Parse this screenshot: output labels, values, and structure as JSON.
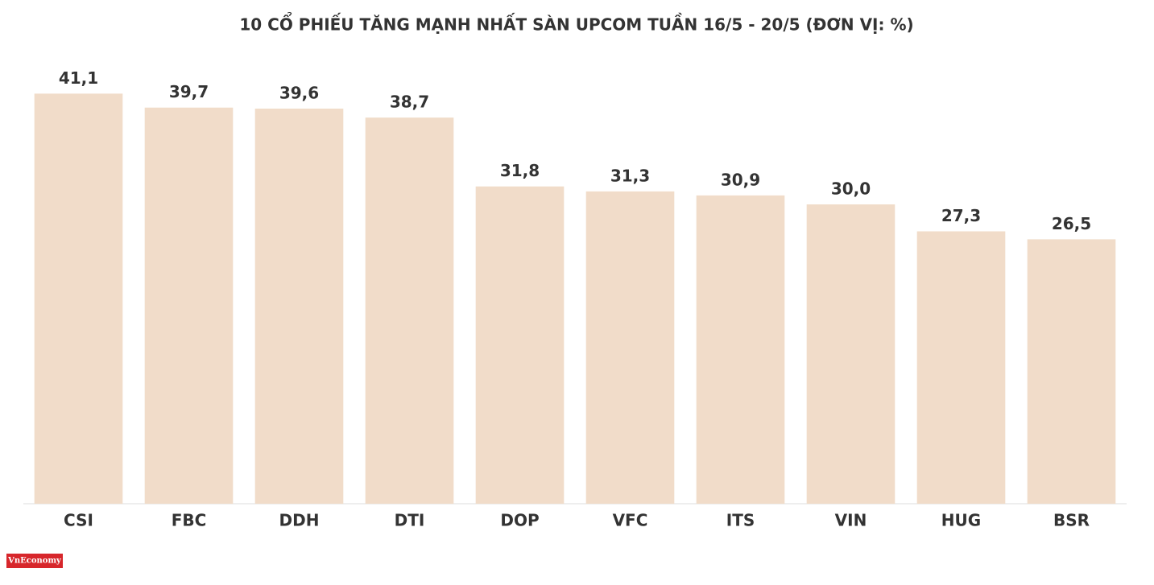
{
  "chart_data": {
    "type": "bar",
    "title": "10 CỔ PHIẾU TĂNG MẠNH NHẤT SÀN UPCOM TUẦN 16/5 - 20/5 (ĐƠN VỊ: %)",
    "categories": [
      "CSI",
      "FBC",
      "DDH",
      "DTI",
      "DOP",
      "VFC",
      "ITS",
      "VIN",
      "HUG",
      "BSR"
    ],
    "values": [
      41.1,
      39.7,
      39.6,
      38.7,
      31.8,
      31.3,
      30.9,
      30.0,
      27.3,
      26.5
    ],
    "value_labels": [
      "41,1",
      "39,7",
      "39,6",
      "38,7",
      "31,8",
      "31,3",
      "30,9",
      "30,0",
      "27,3",
      "26,5"
    ],
    "color": "#f1dcc9",
    "ylim": [
      0,
      45
    ],
    "logo": "VnEconomy"
  }
}
